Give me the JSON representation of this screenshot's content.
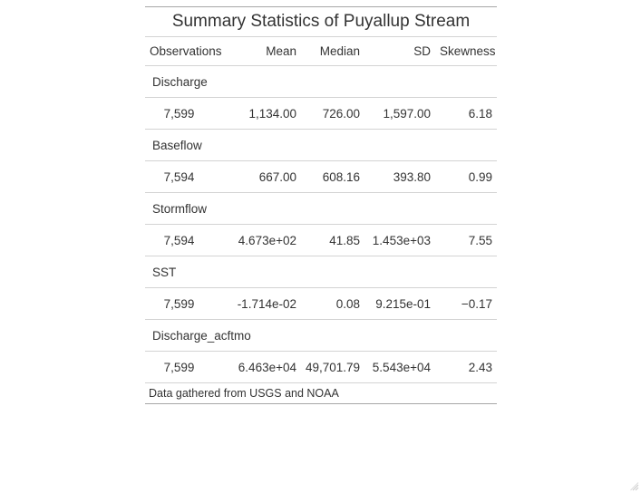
{
  "title": "Summary Statistics of Puyallup Stream",
  "columns": [
    "Observations",
    "Mean",
    "Median",
    "SD",
    "Skewness"
  ],
  "groups": [
    {
      "label": "Discharge",
      "values": [
        "7,599",
        "1,134.00",
        "726.00",
        "1,597.00",
        "6.18"
      ]
    },
    {
      "label": "Baseflow",
      "values": [
        "7,594",
        "667.00",
        "608.16",
        "393.80",
        "0.99"
      ]
    },
    {
      "label": "Stormflow",
      "values": [
        "7,594",
        "4.673e+02",
        "41.85",
        "1.453e+03",
        "7.55"
      ]
    },
    {
      "label": "SST",
      "values": [
        "7,599",
        "-1.714e-02",
        "0.08",
        "9.215e-01",
        "−0.17"
      ]
    },
    {
      "label": "Discharge_acftmo",
      "values": [
        "7,599",
        "6.463e+04",
        "49,701.79",
        "5.543e+04",
        "2.43"
      ]
    }
  ],
  "footnote": "Data gathered from USGS and NOAA",
  "resize_icon": "resize-grip-icon"
}
